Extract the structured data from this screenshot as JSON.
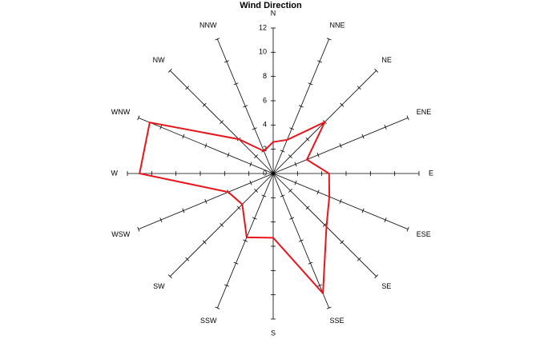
{
  "chart_data": {
    "type": "radar",
    "title": "Wind Direction",
    "categories": [
      "N",
      "NNE",
      "NE",
      "ENE",
      "E",
      "ESE",
      "SE",
      "SSE",
      "S",
      "SSW",
      "SW",
      "WSW",
      "W",
      "WNW",
      "NW",
      "NNW"
    ],
    "values": [
      2.6,
      3,
      6,
      3,
      4.6,
      5,
      6.2,
      10.7,
      5.3,
      5.7,
      3.6,
      4,
      11,
      11,
      4,
      2
    ],
    "color": "#e8151b",
    "rlim": [
      0,
      12
    ],
    "rticks": [
      0,
      2,
      4,
      6,
      8,
      10,
      12
    ]
  }
}
